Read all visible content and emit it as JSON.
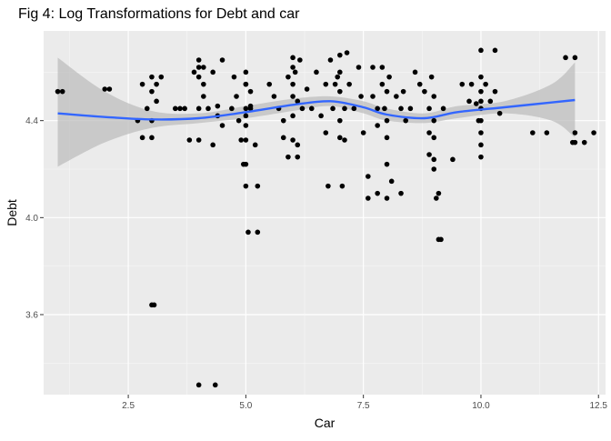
{
  "chart_data": {
    "type": "scatter",
    "title": "Fig 4: Log Transformations for Debt and car",
    "xlabel": "Car",
    "ylabel": "Debt",
    "xlim": [
      0.7,
      12.65
    ],
    "ylim": [
      3.27,
      4.77
    ],
    "xticks": [
      2.5,
      5.0,
      7.5,
      10.0,
      12.5
    ],
    "xtick_labels": [
      "2.5",
      "5.0",
      "7.5",
      "10.0",
      "12.5"
    ],
    "yticks": [
      3.6,
      4.0,
      4.4
    ],
    "ytick_labels": [
      "3.6",
      "4.0",
      "4.4"
    ],
    "grid": true,
    "background": "#ebebeb",
    "point_color": "#000000",
    "smooth_color": "#3366ff",
    "ribbon_color": "#bdbdbd",
    "points": [
      [
        1.0,
        4.52
      ],
      [
        1.1,
        4.52
      ],
      [
        2.0,
        4.53
      ],
      [
        2.1,
        4.53
      ],
      [
        2.7,
        4.4
      ],
      [
        2.8,
        4.55
      ],
      [
        2.8,
        4.33
      ],
      [
        2.9,
        4.45
      ],
      [
        3.0,
        4.58
      ],
      [
        3.0,
        4.52
      ],
      [
        3.0,
        4.4
      ],
      [
        3.0,
        4.33
      ],
      [
        3.0,
        3.64
      ],
      [
        3.05,
        3.64
      ],
      [
        3.1,
        4.55
      ],
      [
        3.1,
        4.48
      ],
      [
        3.2,
        4.58
      ],
      [
        3.5,
        4.45
      ],
      [
        3.6,
        4.45
      ],
      [
        3.7,
        4.45
      ],
      [
        3.9,
        4.6
      ],
      [
        4.0,
        4.65
      ],
      [
        4.0,
        4.62
      ],
      [
        4.0,
        4.58
      ],
      [
        4.0,
        4.45
      ],
      [
        4.0,
        4.32
      ],
      [
        3.8,
        4.32
      ],
      [
        4.1,
        4.62
      ],
      [
        4.1,
        4.55
      ],
      [
        4.1,
        4.5
      ],
      [
        4.2,
        4.45
      ],
      [
        4.3,
        4.6
      ],
      [
        4.3,
        4.3
      ],
      [
        4.4,
        4.46
      ],
      [
        4.4,
        4.42
      ],
      [
        4.5,
        4.65
      ],
      [
        4.5,
        4.38
      ],
      [
        4.0,
        3.31
      ],
      [
        4.35,
        3.31
      ],
      [
        4.7,
        4.45
      ],
      [
        4.75,
        4.58
      ],
      [
        4.8,
        4.5
      ],
      [
        4.85,
        4.4
      ],
      [
        4.9,
        4.32
      ],
      [
        4.95,
        4.22
      ],
      [
        5.0,
        4.6
      ],
      [
        5.0,
        4.55
      ],
      [
        5.0,
        4.45
      ],
      [
        5.0,
        4.42
      ],
      [
        5.0,
        4.38
      ],
      [
        5.0,
        4.32
      ],
      [
        5.0,
        4.13
      ],
      [
        5.05,
        3.94
      ],
      [
        5.0,
        4.55
      ],
      [
        5.1,
        4.52
      ],
      [
        5.1,
        4.46
      ],
      [
        5.1,
        4.45
      ],
      [
        5.2,
        4.3
      ],
      [
        5.25,
        4.13
      ],
      [
        5.25,
        3.94
      ],
      [
        5.0,
        4.22
      ],
      [
        5.5,
        4.55
      ],
      [
        5.6,
        4.5
      ],
      [
        5.7,
        4.45
      ],
      [
        5.8,
        4.4
      ],
      [
        5.8,
        4.33
      ],
      [
        5.9,
        4.58
      ],
      [
        5.9,
        4.25
      ],
      [
        6.0,
        4.62
      ],
      [
        6.0,
        4.55
      ],
      [
        6.0,
        4.5
      ],
      [
        6.0,
        4.42
      ],
      [
        6.0,
        4.32
      ],
      [
        6.0,
        4.66
      ],
      [
        6.05,
        4.6
      ],
      [
        6.1,
        4.48
      ],
      [
        6.1,
        4.3
      ],
      [
        6.1,
        4.25
      ],
      [
        6.15,
        4.65
      ],
      [
        6.2,
        4.45
      ],
      [
        6.3,
        4.53
      ],
      [
        6.4,
        4.45
      ],
      [
        6.5,
        4.6
      ],
      [
        6.6,
        4.42
      ],
      [
        6.7,
        4.55
      ],
      [
        6.7,
        4.35
      ],
      [
        6.75,
        4.13
      ],
      [
        6.8,
        4.65
      ],
      [
        6.85,
        4.45
      ],
      [
        6.9,
        4.55
      ],
      [
        6.95,
        4.58
      ],
      [
        7.0,
        4.6
      ],
      [
        7.0,
        4.52
      ],
      [
        7.0,
        4.4
      ],
      [
        7.0,
        4.33
      ],
      [
        7.0,
        4.67
      ],
      [
        7.05,
        4.13
      ],
      [
        7.1,
        4.45
      ],
      [
        7.1,
        4.32
      ],
      [
        7.15,
        4.68
      ],
      [
        7.2,
        4.55
      ],
      [
        7.3,
        4.45
      ],
      [
        7.4,
        4.62
      ],
      [
        7.45,
        4.5
      ],
      [
        7.5,
        4.35
      ],
      [
        7.6,
        4.17
      ],
      [
        7.6,
        4.08
      ],
      [
        7.7,
        4.62
      ],
      [
        7.7,
        4.5
      ],
      [
        7.8,
        4.45
      ],
      [
        7.8,
        4.38
      ],
      [
        7.8,
        4.1
      ],
      [
        7.9,
        4.62
      ],
      [
        7.9,
        4.55
      ],
      [
        7.95,
        4.45
      ],
      [
        8.0,
        4.52
      ],
      [
        8.0,
        4.4
      ],
      [
        8.0,
        4.33
      ],
      [
        8.0,
        4.22
      ],
      [
        8.0,
        4.08
      ],
      [
        8.05,
        4.58
      ],
      [
        8.1,
        4.15
      ],
      [
        8.2,
        4.5
      ],
      [
        8.3,
        4.45
      ],
      [
        8.3,
        4.1
      ],
      [
        8.35,
        4.52
      ],
      [
        8.4,
        4.4
      ],
      [
        8.5,
        4.45
      ],
      [
        8.6,
        4.6
      ],
      [
        8.7,
        4.55
      ],
      [
        8.8,
        4.52
      ],
      [
        8.9,
        4.45
      ],
      [
        8.9,
        4.35
      ],
      [
        8.9,
        4.26
      ],
      [
        8.95,
        4.58
      ],
      [
        9.0,
        4.5
      ],
      [
        9.0,
        4.4
      ],
      [
        9.0,
        4.33
      ],
      [
        9.0,
        4.24
      ],
      [
        9.0,
        4.2
      ],
      [
        9.05,
        4.08
      ],
      [
        9.1,
        4.1
      ],
      [
        9.1,
        3.91
      ],
      [
        9.15,
        3.91
      ],
      [
        9.2,
        4.45
      ],
      [
        9.4,
        4.24
      ],
      [
        9.6,
        4.55
      ],
      [
        9.75,
        4.48
      ],
      [
        9.8,
        4.55
      ],
      [
        9.9,
        4.47
      ],
      [
        9.95,
        4.4
      ],
      [
        10.0,
        4.69
      ],
      [
        10.0,
        4.58
      ],
      [
        10.0,
        4.52
      ],
      [
        10.0,
        4.48
      ],
      [
        10.0,
        4.45
      ],
      [
        10.0,
        4.4
      ],
      [
        10.0,
        4.35
      ],
      [
        10.0,
        4.3
      ],
      [
        10.0,
        4.25
      ],
      [
        10.1,
        4.55
      ],
      [
        10.2,
        4.48
      ],
      [
        10.3,
        4.52
      ],
      [
        10.3,
        4.69
      ],
      [
        10.4,
        4.43
      ],
      [
        11.1,
        4.35
      ],
      [
        11.4,
        4.35
      ],
      [
        11.8,
        4.66
      ],
      [
        12.0,
        4.66
      ],
      [
        12.0,
        4.35
      ],
      [
        12.0,
        4.31
      ],
      [
        11.95,
        4.31
      ],
      [
        12.2,
        4.31
      ],
      [
        12.4,
        4.35
      ]
    ],
    "smooth_curve": [
      {
        "x": 1.0,
        "y": 4.43,
        "lo": 4.21,
        "hi": 4.66
      },
      {
        "x": 2.0,
        "y": 4.415,
        "lo": 4.31,
        "hi": 4.52
      },
      {
        "x": 3.0,
        "y": 4.405,
        "lo": 4.37,
        "hi": 4.44
      },
      {
        "x": 4.0,
        "y": 4.41,
        "lo": 4.39,
        "hi": 4.43
      },
      {
        "x": 5.0,
        "y": 4.435,
        "lo": 4.41,
        "hi": 4.46
      },
      {
        "x": 6.0,
        "y": 4.465,
        "lo": 4.44,
        "hi": 4.49
      },
      {
        "x": 6.8,
        "y": 4.48,
        "lo": 4.46,
        "hi": 4.5
      },
      {
        "x": 7.5,
        "y": 4.455,
        "lo": 4.43,
        "hi": 4.48
      },
      {
        "x": 8.0,
        "y": 4.425,
        "lo": 4.4,
        "hi": 4.45
      },
      {
        "x": 8.8,
        "y": 4.41,
        "lo": 4.39,
        "hi": 4.43
      },
      {
        "x": 9.5,
        "y": 4.435,
        "lo": 4.41,
        "hi": 4.46
      },
      {
        "x": 10.5,
        "y": 4.455,
        "lo": 4.43,
        "hi": 4.48
      },
      {
        "x": 11.5,
        "y": 4.475,
        "lo": 4.4,
        "hi": 4.55
      },
      {
        "x": 12.0,
        "y": 4.485,
        "lo": 4.33,
        "hi": 4.64
      }
    ]
  }
}
